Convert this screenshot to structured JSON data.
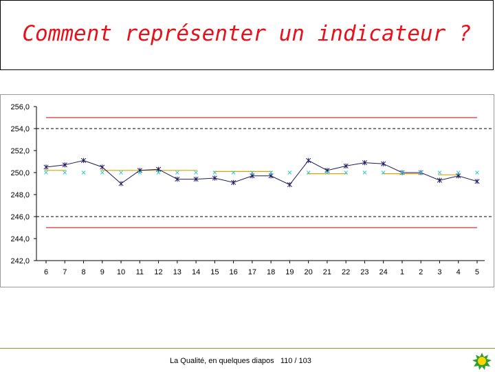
{
  "header": {
    "title": "Comment représenter un indicateur ?"
  },
  "footer": {
    "caption": "La Qualité, en quelques diapos",
    "page": "110 / 103"
  },
  "logo": {
    "icon": "sun-icon"
  },
  "chart_data": {
    "type": "line",
    "title": "",
    "xlabel": "",
    "ylabel": "",
    "categories": [
      "6",
      "7",
      "8",
      "9",
      "10",
      "11",
      "12",
      "13",
      "14",
      "15",
      "16",
      "17",
      "18",
      "19",
      "20",
      "21",
      "22",
      "23",
      "24",
      "1",
      "2",
      "3",
      "4",
      "5"
    ],
    "ylim": [
      242.0,
      256.0
    ],
    "yticks": [
      "256,0",
      "254,0",
      "252,0",
      "250,0",
      "248,0",
      "246,0",
      "244,0",
      "242,0"
    ],
    "ytick_values": [
      256,
      254,
      252,
      250,
      248,
      246,
      244,
      242
    ],
    "series": [
      {
        "values": [
          250.5,
          250.7,
          251.1,
          250.5,
          249.0,
          250.2,
          250.3,
          249.4,
          249.4,
          249.5,
          249.1,
          249.7,
          249.7,
          248.9,
          251.1,
          250.2,
          250.6,
          250.9,
          250.8,
          250.0,
          250.0,
          249.3,
          249.7,
          249.2
        ],
        "color": "#1a1a5e",
        "marker": "asterisk"
      },
      {
        "values": [
          250,
          250,
          250,
          250,
          250,
          250,
          250,
          250,
          250,
          250,
          250,
          250,
          250,
          250,
          250,
          250,
          250,
          250,
          250,
          250,
          250,
          250,
          250,
          250
        ],
        "color": "#33cccc",
        "marker": "x"
      }
    ],
    "limit_lines": [
      {
        "value": 255.0,
        "color": "#cc0000",
        "style": "solid"
      },
      {
        "value": 245.0,
        "color": "#cc0000",
        "style": "solid"
      },
      {
        "value": 254.0,
        "color": "#000000",
        "style": "dashed"
      },
      {
        "value": 246.0,
        "color": "#000000",
        "style": "dashed"
      }
    ],
    "segment_lines": {
      "color": "#e0a000",
      "segments": [
        {
          "from": "6",
          "to": "7",
          "value": 250.2
        },
        {
          "from": "9",
          "to": "14",
          "value": 250.2
        },
        {
          "from": "15",
          "to": "18",
          "value": 250.1
        },
        {
          "from": "20",
          "to": "22",
          "value": 249.9
        },
        {
          "from": "24",
          "to": "2",
          "value": 249.9
        },
        {
          "from": "3",
          "to": "4",
          "value": 249.8
        }
      ]
    },
    "grid": false,
    "legend": "none"
  }
}
